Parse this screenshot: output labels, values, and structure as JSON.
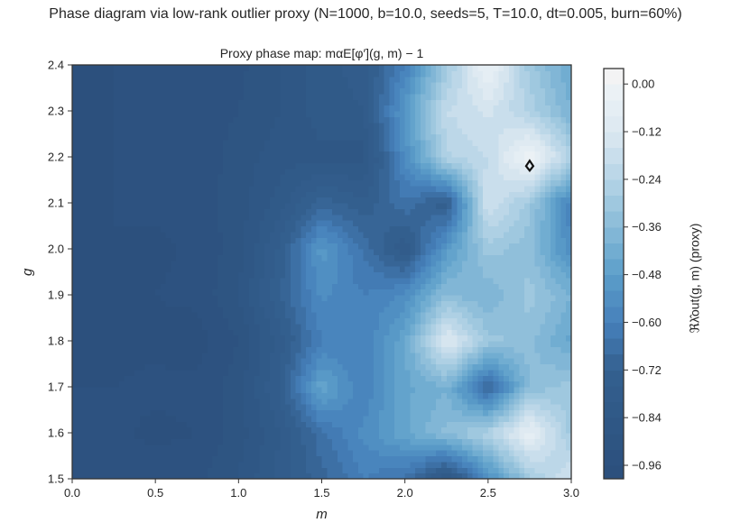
{
  "chart_data": {
    "type": "heatmap",
    "subtype": "filled-contour",
    "suptitle": "Phase diagram via low-rank outlier proxy (N=1000, b=10.0, seeds=5, T=10.0, dt=0.005, burn=60%)",
    "title": "Proxy phase map: mαE[φ′](g, m) − 1",
    "xlabel": "m",
    "ylabel": "g",
    "colorbar_label": "ℜλ̂out(g, m)  (proxy)",
    "xlim": [
      0.0,
      3.0
    ],
    "ylim": [
      1.5,
      2.4
    ],
    "xticks": [
      "0.0",
      "0.5",
      "1.0",
      "1.5",
      "2.0",
      "2.5",
      "3.0"
    ],
    "yticks": [
      "1.5",
      "1.6",
      "1.7",
      "1.8",
      "1.9",
      "2.0",
      "2.1",
      "2.2",
      "2.3",
      "2.4"
    ],
    "colorbar_ticks": [
      "0.00",
      "−0.12",
      "−0.24",
      "−0.36",
      "−0.48",
      "−0.60",
      "−0.72",
      "−0.84",
      "−0.96"
    ],
    "colorbar_range": [
      -0.994,
      0.039
    ],
    "colormap": [
      "#2c4f7c",
      "#2f5785",
      "#34608f",
      "#4680bb",
      "#5b9ec9",
      "#88bbd8",
      "#b5d4e6",
      "#dce8f1",
      "#eef3f6",
      "#f8f2f2"
    ],
    "zero_contour_color": "#111111",
    "m": [
      0,
      0.25,
      0.5,
      0.75,
      1.0,
      1.25,
      1.5,
      1.75,
      2.0,
      2.25,
      2.5,
      2.75,
      3.0
    ],
    "g": [
      1.5,
      1.6,
      1.7,
      1.8,
      1.9,
      2.0,
      2.1,
      2.2,
      2.3,
      2.4
    ],
    "z": [
      [
        -0.96,
        -0.95,
        -0.94,
        -0.93,
        -0.88,
        -0.78,
        -0.7,
        -0.6,
        -0.65,
        -0.85,
        -0.55,
        -0.3,
        -0.15
      ],
      [
        -0.95,
        -0.95,
        -0.97,
        -0.96,
        -0.9,
        -0.8,
        -0.65,
        -0.55,
        -0.45,
        -0.35,
        -0.25,
        -0.05,
        -0.3
      ],
      [
        -0.96,
        -0.96,
        -0.95,
        -0.95,
        -0.9,
        -0.75,
        -0.45,
        -0.6,
        -0.45,
        -0.4,
        -0.7,
        -0.35,
        -0.3
      ],
      [
        -0.96,
        -0.97,
        -0.97,
        -0.98,
        -0.92,
        -0.78,
        -0.6,
        -0.6,
        -0.45,
        -0.1,
        -0.3,
        -0.35,
        -0.45
      ],
      [
        -0.97,
        -0.98,
        -0.96,
        -0.95,
        -0.88,
        -0.72,
        -0.55,
        -0.6,
        -0.55,
        -0.35,
        -0.4,
        -0.3,
        -0.4
      ],
      [
        -0.97,
        -0.96,
        -0.97,
        -0.95,
        -0.9,
        -0.75,
        -0.5,
        -0.65,
        -0.8,
        -0.5,
        -0.3,
        -0.35,
        -0.55
      ],
      [
        -0.97,
        -0.96,
        -0.95,
        -0.94,
        -0.9,
        -0.82,
        -0.7,
        -0.75,
        -0.65,
        -0.75,
        -0.15,
        -0.3,
        -0.6
      ],
      [
        -0.97,
        -0.96,
        -0.96,
        -0.95,
        -0.9,
        -0.86,
        -0.85,
        -0.86,
        -0.55,
        -0.25,
        -0.2,
        0.0,
        -0.25
      ],
      [
        -0.97,
        -0.96,
        -0.95,
        -0.94,
        -0.92,
        -0.88,
        -0.82,
        -0.8,
        -0.5,
        -0.2,
        -0.15,
        -0.25,
        -0.4
      ],
      [
        -0.97,
        -0.96,
        -0.95,
        -0.95,
        -0.93,
        -0.88,
        -0.82,
        -0.78,
        -0.6,
        -0.3,
        -0.02,
        -0.3,
        -0.45
      ]
    ]
  }
}
